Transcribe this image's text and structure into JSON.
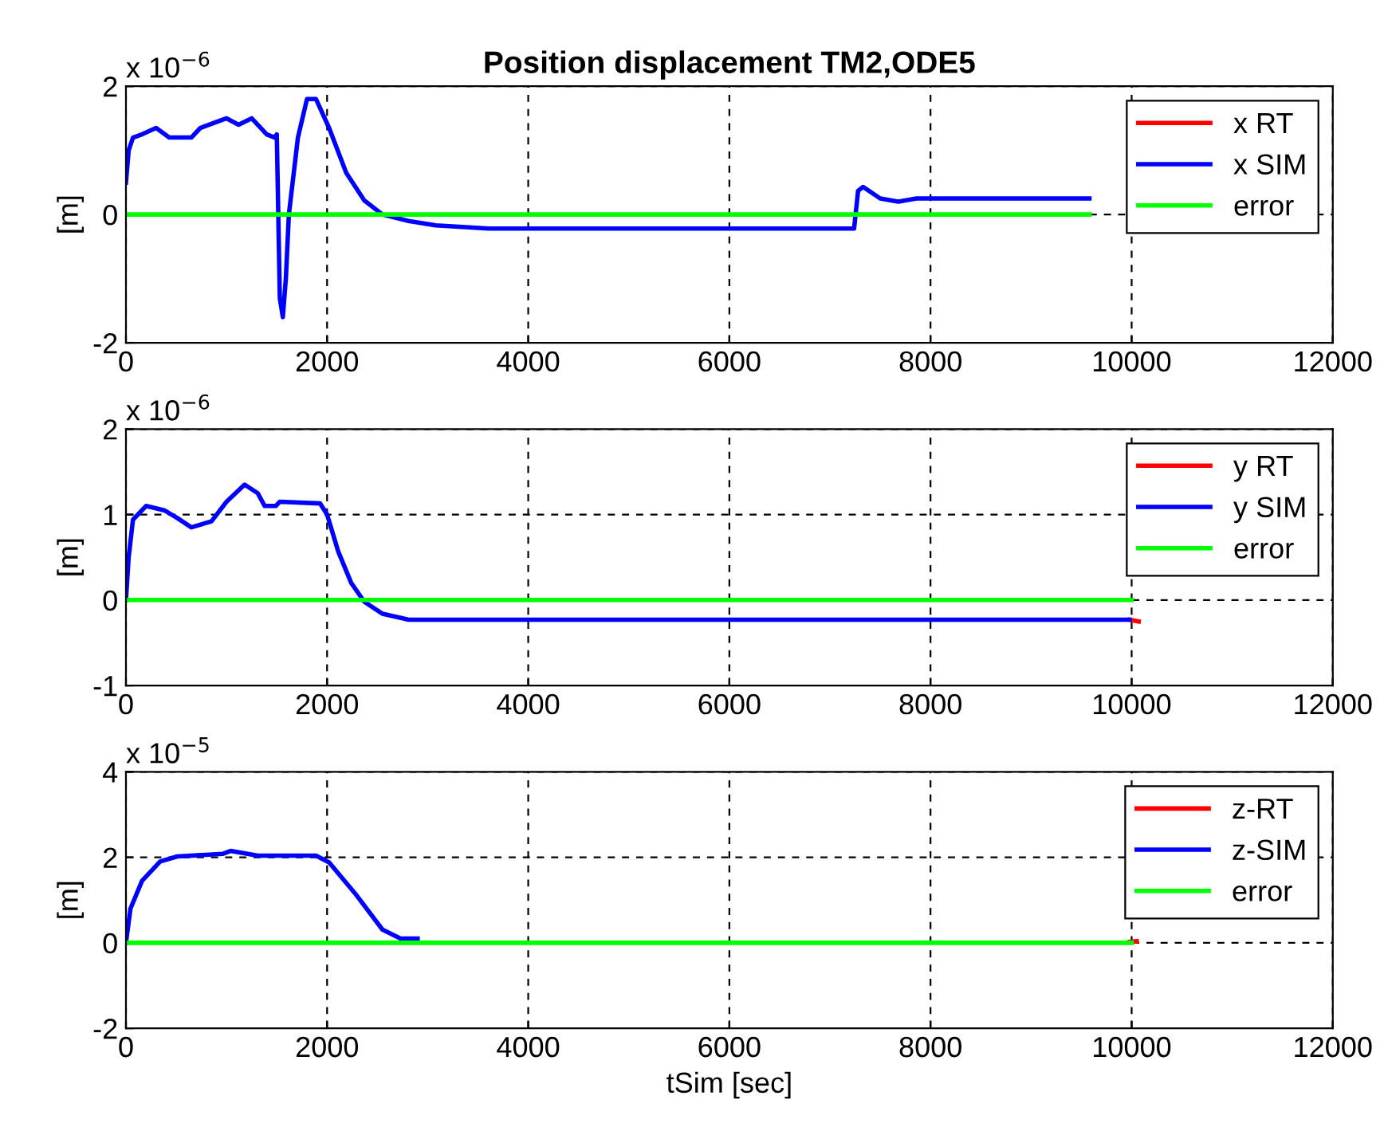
{
  "chart_data": [
    {
      "type": "line",
      "title": "Position displacement TM2,ODE5",
      "ylabel": "[m]",
      "annotations": [
        "x 10$^{−6}$"
      ],
      "xlim": [
        0,
        12000
      ],
      "xticks": [
        0,
        2000,
        4000,
        6000,
        8000,
        10000,
        12000
      ],
      "ylim": [
        -2,
        2
      ],
      "yticks": [
        -2,
        0,
        2
      ],
      "grid": true,
      "legend": "top right",
      "series": [
        {
          "name": "x RT",
          "color": "#ff0000"
        },
        {
          "name": "x SIM",
          "color": "#0000ff",
          "x": [
            0,
            27,
            70,
            160,
            300,
            430,
            650,
            740,
            1000,
            1120,
            1250,
            1400,
            1480,
            1500,
            1530,
            1560,
            1590,
            1620,
            1710,
            1800,
            1890,
            2020,
            2190,
            2370,
            2550,
            2810,
            3080,
            3610,
            7240,
            7280,
            7330,
            7500,
            7680,
            7860,
            9580
          ],
          "values": [
            0.5,
            1.0,
            1.2,
            1.25,
            1.35,
            1.2,
            1.2,
            1.35,
            1.5,
            1.4,
            1.5,
            1.25,
            1.2,
            1.25,
            -1.3,
            -1.6,
            -1.0,
            0,
            1.2,
            1.8,
            1.8,
            1.35,
            0.65,
            0.22,
            0,
            -0.1,
            -0.17,
            -0.22,
            -0.22,
            0.37,
            0.43,
            0.25,
            0.2,
            0.25,
            0.25
          ]
        },
        {
          "name": "error",
          "color": "#00ff00",
          "x": [
            0,
            9580
          ],
          "values": [
            0,
            0
          ]
        }
      ]
    },
    {
      "type": "line",
      "ylabel": "[m]",
      "annotations": [
        "x 10$^{−6}$"
      ],
      "xlim": [
        0,
        12000
      ],
      "xticks": [
        0,
        2000,
        4000,
        6000,
        8000,
        10000,
        12000
      ],
      "ylim": [
        -1,
        2
      ],
      "yticks": [
        -1,
        0,
        1,
        2
      ],
      "grid": true,
      "legend": "top right",
      "series": [
        {
          "name": "y RT",
          "color": "#ff0000",
          "x": [
            9980,
            10070
          ],
          "values": [
            -0.23,
            -0.25
          ]
        },
        {
          "name": "y SIM",
          "color": "#0000ff",
          "x": [
            0,
            27,
            70,
            200,
            380,
            510,
            650,
            850,
            1000,
            1180,
            1310,
            1380,
            1490,
            1530,
            1930,
            2000,
            2110,
            2240,
            2370,
            2550,
            2810,
            9980
          ],
          "values": [
            0,
            0.5,
            0.94,
            1.1,
            1.05,
            0.96,
            0.85,
            0.92,
            1.15,
            1.35,
            1.25,
            1.1,
            1.1,
            1.15,
            1.13,
            1.0,
            0.57,
            0.2,
            -0.02,
            -0.16,
            -0.23,
            -0.23
          ]
        },
        {
          "name": "error",
          "color": "#00ff00",
          "x": [
            0,
            10000
          ],
          "values": [
            0,
            0
          ]
        }
      ]
    },
    {
      "type": "line",
      "ylabel": "[m]",
      "xlabel": "tSim [sec]",
      "annotations": [
        "x 10$^{−5}$"
      ],
      "xlim": [
        0,
        12000
      ],
      "xticks": [
        0,
        2000,
        4000,
        6000,
        8000,
        10000,
        12000
      ],
      "ylim": [
        -2,
        4
      ],
      "yticks": [
        -2,
        0,
        2,
        4
      ],
      "grid": true,
      "legend": "top right",
      "series": [
        {
          "name": "z-RT",
          "color": "#ff0000",
          "x": [
            9980,
            10050
          ],
          "values": [
            0.02,
            0.04
          ]
        },
        {
          "name": "z-SIM",
          "color": "#0000ff",
          "x": [
            0,
            45,
            160,
            340,
            510,
            960,
            1040,
            1310,
            1890,
            2020,
            2280,
            2550,
            2730,
            2900
          ],
          "values": [
            0,
            0.8,
            1.45,
            1.9,
            2.02,
            2.08,
            2.15,
            2.04,
            2.04,
            1.88,
            1.15,
            0.31,
            0.1,
            0.1
          ]
        },
        {
          "name": "error",
          "color": "#00ff00",
          "x": [
            0,
            10000
          ],
          "values": [
            0,
            0
          ]
        }
      ]
    }
  ]
}
